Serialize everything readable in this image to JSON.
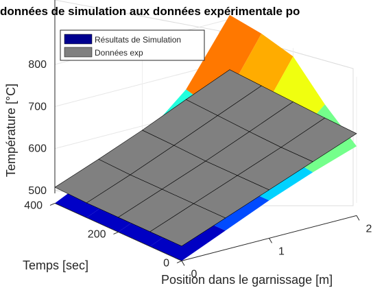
{
  "chart_data": {
    "type": "surface3d",
    "title": "données de simulation aux données expérimentale po",
    "xlabel": "Position dans le garnissage [m]",
    "ylabel": "Temps [sec]",
    "zlabel": "Température [°C]",
    "xticks": [
      "0",
      "1",
      "2"
    ],
    "yticks": [
      "0",
      "200",
      "400"
    ],
    "zticks": [
      "500",
      "600",
      "700",
      "800"
    ],
    "xlim": [
      0,
      2
    ],
    "ylim": [
      0,
      400
    ],
    "zlim": [
      500,
      800
    ],
    "grid": true,
    "legend_position": "top-left",
    "series": [
      {
        "name": "Résultats de Simulation",
        "color": "#00008f",
        "colormap": "jet",
        "x": [
          0,
          0.5,
          1,
          1.5,
          2
        ],
        "y": [
          0,
          100,
          200,
          300,
          400
        ],
        "z": [
          [
            470,
            515,
            560,
            600,
            635
          ],
          [
            470,
            515,
            560,
            610,
            700
          ],
          [
            470,
            515,
            560,
            620,
            780
          ],
          [
            470,
            515,
            565,
            640,
            800
          ],
          [
            470,
            520,
            570,
            660,
            810
          ]
        ]
      },
      {
        "name": "Données exp",
        "color": "#808080",
        "x": [
          0,
          0.5,
          1,
          1.5,
          2
        ],
        "y": [
          0,
          100,
          200,
          300,
          400
        ],
        "z": [
          [
            505,
            545,
            585,
            625,
            665
          ],
          [
            505,
            545,
            585,
            625,
            668
          ],
          [
            505,
            545,
            585,
            628,
            672
          ],
          [
            505,
            545,
            588,
            632,
            676
          ],
          [
            508,
            548,
            590,
            636,
            680
          ]
        ]
      }
    ]
  }
}
